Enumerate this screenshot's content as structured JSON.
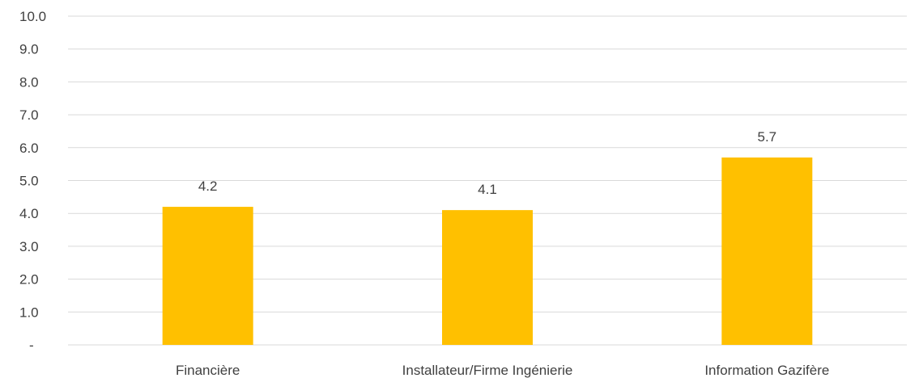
{
  "chart_data": {
    "type": "bar",
    "categories": [
      "Financière",
      "Installateur/Firme Ingénierie",
      "Information Gazifère"
    ],
    "values": [
      4.2,
      4.1,
      5.7
    ],
    "data_labels": [
      "4.2",
      "4.1",
      "5.7"
    ],
    "title": "",
    "xlabel": "",
    "ylabel": "",
    "ylim": [
      0,
      10
    ],
    "y_ticks": [
      "-",
      "1.0",
      "2.0",
      "3.0",
      "4.0",
      "5.0",
      "6.0",
      "7.0",
      "8.0",
      "9.0",
      "10.0"
    ],
    "grid": true,
    "legend": "none",
    "bar_color": "#FFC000",
    "grid_color": "#D9D9D9",
    "text_color": "#404040"
  }
}
